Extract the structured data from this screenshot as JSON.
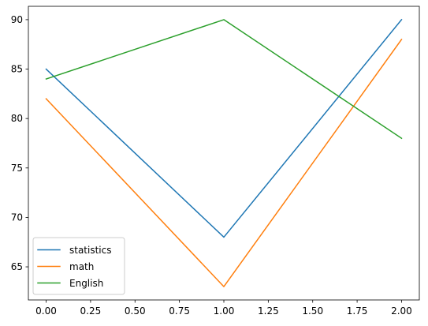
{
  "chart_data": {
    "type": "line",
    "x": [
      0,
      1,
      2
    ],
    "xlim": [
      -0.1,
      2.1
    ],
    "ylim": [
      61.65,
      91.35
    ],
    "xticks": [
      0,
      0.25,
      0.5,
      0.75,
      1,
      1.25,
      1.5,
      1.75,
      2
    ],
    "xtick_labels": [
      "0.00",
      "0.25",
      "0.50",
      "0.75",
      "1.00",
      "1.25",
      "1.50",
      "1.75",
      "2.00"
    ],
    "yticks": [
      65,
      70,
      75,
      80,
      85,
      90
    ],
    "ytick_labels": [
      "65",
      "70",
      "75",
      "80",
      "85",
      "90"
    ],
    "grid": false,
    "legend_position": "lower-left",
    "series": [
      {
        "name": "statistics",
        "values": [
          85,
          68,
          90
        ],
        "color": "#1f77b4"
      },
      {
        "name": "math",
        "values": [
          82,
          63,
          88
        ],
        "color": "#ff7f0e"
      },
      {
        "name": "English",
        "values": [
          84,
          90,
          78
        ],
        "color": "#2ca02c"
      }
    ]
  }
}
